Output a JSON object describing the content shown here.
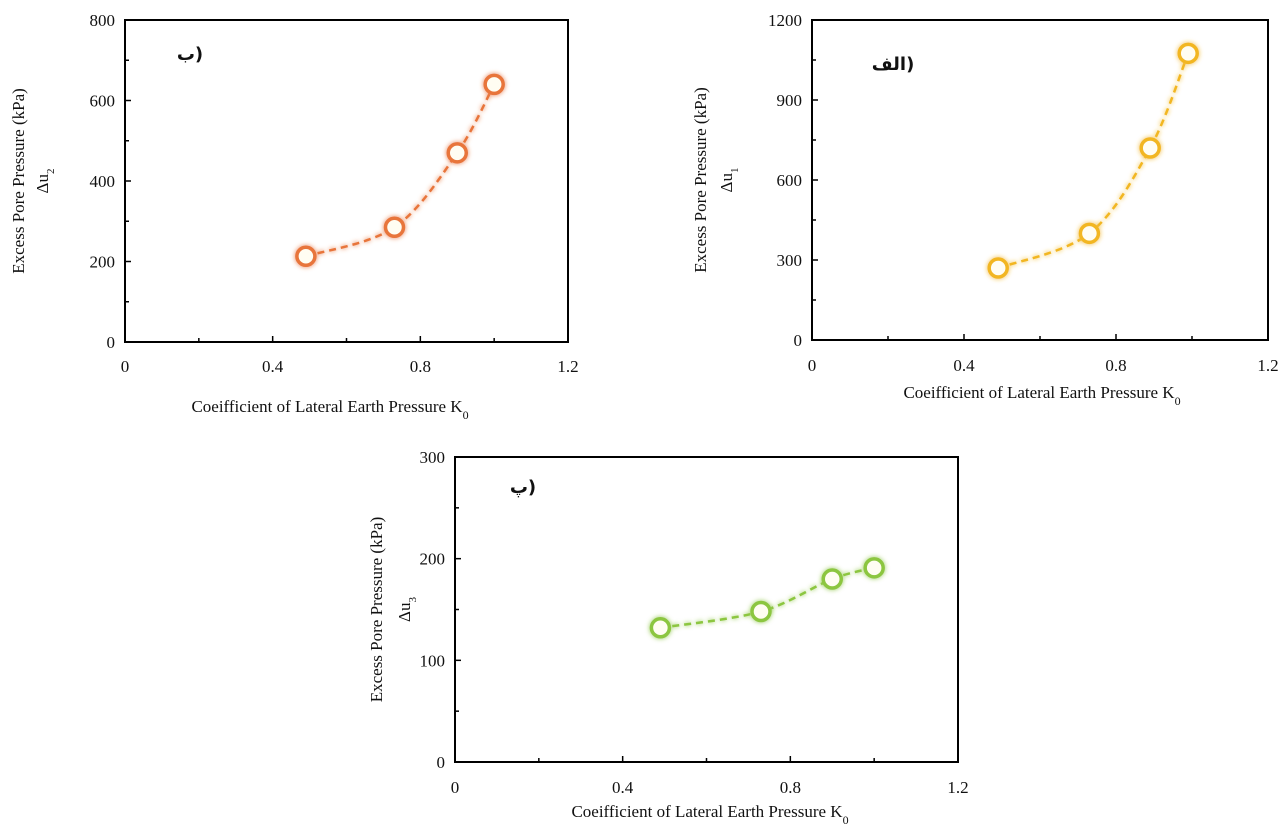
{
  "chart_data": [
    {
      "type": "scatter",
      "panel_label": "(ب",
      "xlabel": "Coeifficient of Lateral Earth Pressure K",
      "xlabel_sub": "0",
      "ylabel": "Excess Pore Pressure (kPa)",
      "ylabel2": "Δu",
      "ylabel2_sub": "2",
      "xlim": [
        0,
        1.2
      ],
      "ylim": [
        0,
        800
      ],
      "xticks": [
        0,
        0.4,
        0.8,
        1.2
      ],
      "yticks": [
        0,
        200,
        400,
        600,
        800
      ],
      "x": [
        0.49,
        0.73,
        0.9,
        1.0
      ],
      "y": [
        213,
        285,
        470,
        640
      ],
      "color": "#e8743b",
      "marker": "open-circle",
      "line": "dashed-smooth",
      "grid": false
    },
    {
      "type": "scatter",
      "panel_label": "(الف",
      "xlabel": "Coeifficient of Lateral Earth Pressure K",
      "xlabel_sub": "0",
      "ylabel": "Excess Pore Pressure (kPa)",
      "ylabel2": "Δu",
      "ylabel2_sub": "1",
      "xlim": [
        0,
        1.2
      ],
      "ylim": [
        0,
        1200
      ],
      "xticks": [
        0,
        0.4,
        0.8,
        1.2
      ],
      "yticks": [
        0,
        300,
        600,
        900,
        1200
      ],
      "x": [
        0.49,
        0.73,
        0.89,
        0.99
      ],
      "y": [
        270,
        400,
        720,
        1075
      ],
      "color": "#f2b620",
      "marker": "open-circle",
      "line": "dashed-smooth",
      "grid": false
    },
    {
      "type": "scatter",
      "panel_label": "(پ",
      "xlabel": "Coeifficient of Lateral Earth Pressure K",
      "xlabel_sub": "0",
      "ylabel": "Excess Pore Pressure (kPa)",
      "ylabel2": "Δu",
      "ylabel2_sub": "3",
      "xlim": [
        0,
        1.2
      ],
      "ylim": [
        0,
        300
      ],
      "xticks": [
        0,
        0.4,
        0.8,
        1.2
      ],
      "yticks": [
        0,
        100,
        200,
        300
      ],
      "x": [
        0.49,
        0.73,
        0.9,
        1.0
      ],
      "y": [
        132,
        148,
        180,
        191
      ],
      "color": "#8cc63f",
      "marker": "open-circle",
      "line": "dashed-smooth",
      "grid": false
    }
  ]
}
